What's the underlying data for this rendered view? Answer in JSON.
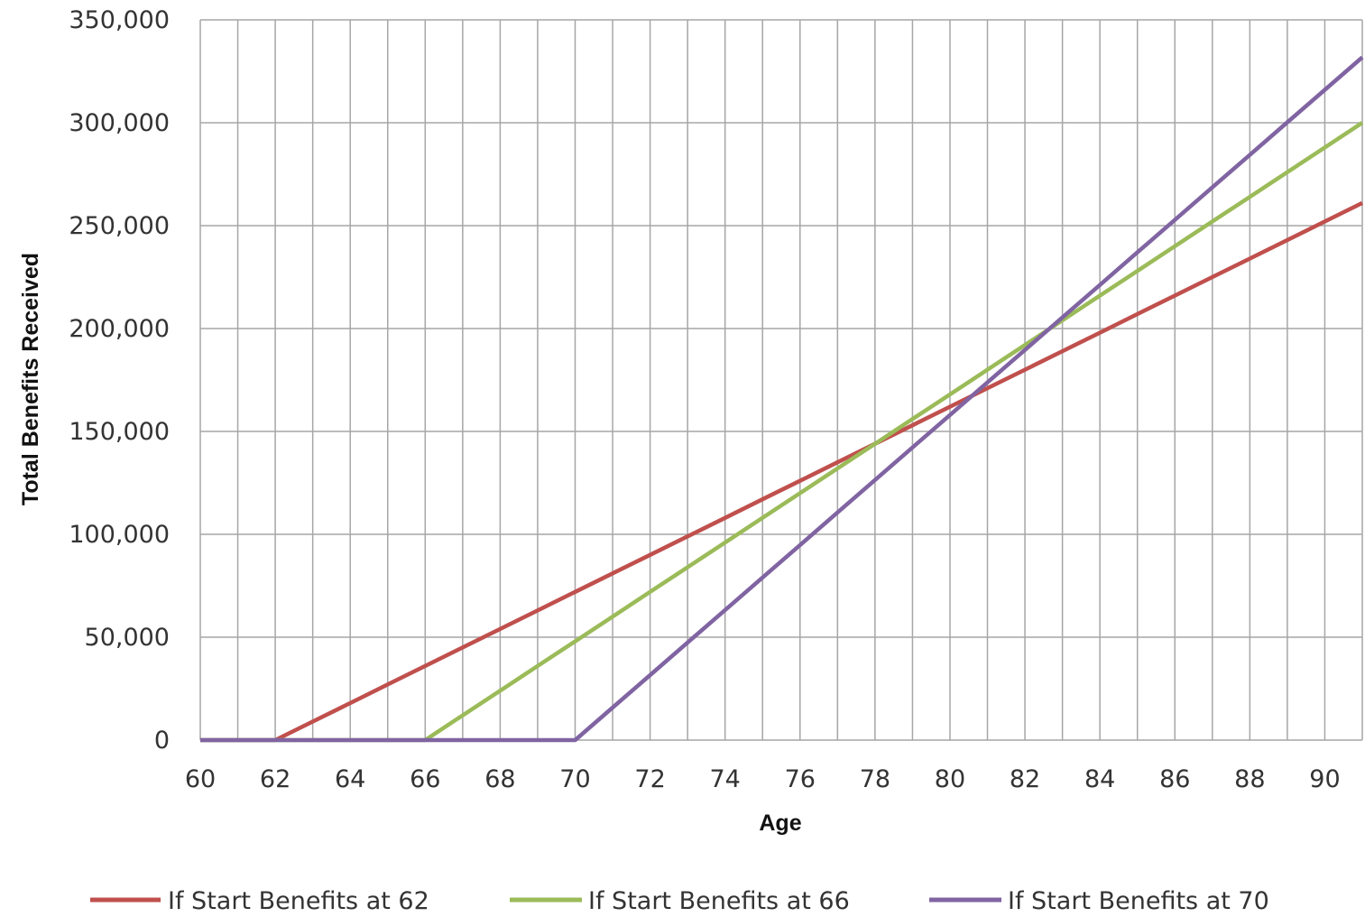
{
  "chart_data": {
    "type": "line",
    "xlabel": "Age",
    "ylabel": "Total Benefits Received",
    "xlim": [
      60,
      91
    ],
    "ylim": [
      0,
      350000
    ],
    "x_ticks": [
      "60",
      "62",
      "64",
      "66",
      "68",
      "70",
      "72",
      "74",
      "76",
      "78",
      "80",
      "82",
      "84",
      "86",
      "88",
      "90"
    ],
    "y_ticks": [
      "0",
      "50,000",
      "100,000",
      "150,000",
      "200,000",
      "250,000",
      "300,000",
      "350,000"
    ],
    "grid": true,
    "legend_position": "bottom",
    "series": [
      {
        "name": "If Start Benefits at 62",
        "color": "#c0504d",
        "x": [
          60,
          62,
          63,
          64,
          65,
          66,
          67,
          68,
          69,
          70,
          71,
          72,
          73,
          74,
          75,
          76,
          77,
          78,
          79,
          80,
          81,
          82,
          83,
          84,
          85,
          86,
          87,
          88,
          89,
          90,
          91
        ],
        "y": [
          0,
          0,
          9000,
          18000,
          27000,
          36000,
          45000,
          54000,
          63000,
          72000,
          81000,
          90000,
          99000,
          108000,
          117000,
          126000,
          135000,
          144000,
          153000,
          162000,
          171000,
          180000,
          189000,
          198000,
          207000,
          216000,
          225000,
          234000,
          243000,
          252000,
          261000
        ]
      },
      {
        "name": "If Start Benefits at 66",
        "color": "#9bbb59",
        "x": [
          60,
          66,
          67,
          68,
          69,
          70,
          71,
          72,
          73,
          74,
          75,
          76,
          77,
          78,
          79,
          80,
          81,
          82,
          83,
          84,
          85,
          86,
          87,
          88,
          89,
          90,
          91
        ],
        "y": [
          0,
          0,
          12000,
          24000,
          36000,
          48000,
          60000,
          72000,
          84000,
          96000,
          108000,
          120000,
          132000,
          144000,
          156000,
          168000,
          180000,
          192000,
          204000,
          216000,
          228000,
          240000,
          252000,
          264000,
          276000,
          288000,
          300000
        ]
      },
      {
        "name": "If Start Benefits at 70",
        "color": "#8064a2",
        "x": [
          60,
          70,
          71,
          72,
          73,
          74,
          75,
          76,
          77,
          78,
          79,
          80,
          81,
          82,
          83,
          84,
          85,
          86,
          87,
          88,
          89,
          90,
          91
        ],
        "y": [
          0,
          0,
          15800,
          31600,
          47400,
          63200,
          79000,
          94800,
          110600,
          126400,
          142200,
          158000,
          173800,
          189600,
          205400,
          221200,
          237000,
          252800,
          268600,
          284400,
          300200,
          316000,
          331800
        ]
      }
    ]
  }
}
